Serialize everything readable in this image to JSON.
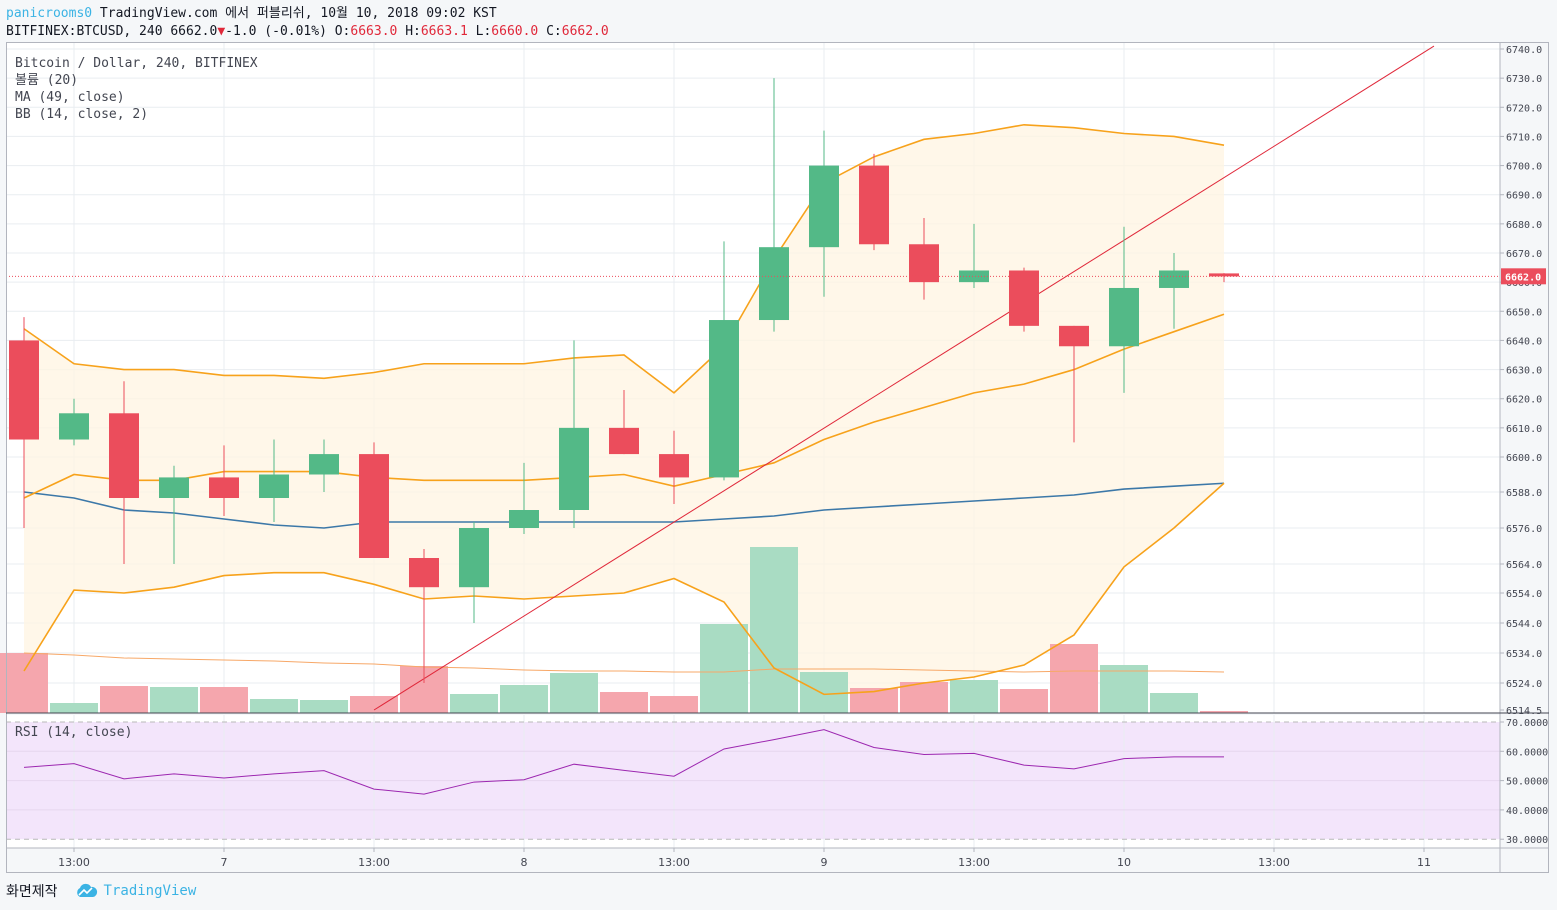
{
  "header": {
    "user": "panicrooms0",
    "published": " TradingView.com 에서 퍼블리쉬, 10월 10, 2018 09:02 KST",
    "symbol": "BITFINEX:BTCUSD, 240 6662.0",
    "change_arrow": "▼",
    "change": "-1.0 (-0.01%)",
    "o_label": "O:",
    "o": "6663.0",
    "h_label": "H:",
    "h": "6663.1",
    "l_label": "L:",
    "l": "6660.0",
    "c_label": "C:",
    "c": "6662.0"
  },
  "legend": {
    "main": "Bitcoin / Dollar, 240, BITFINEX",
    "volume": "볼륨 (20)",
    "ma": "MA (49, close)",
    "bb": "BB (14, close, 2)",
    "rsi": "RSI (14, close)"
  },
  "footer": {
    "left": "화면제작",
    "brand": "TradingView"
  },
  "colors": {
    "up": "#53b987",
    "down": "#eb4d5c",
    "bb": "#f7a21b",
    "ma": "#3c78a8",
    "rsi": "#9c27b0",
    "trend": "#e0283a"
  },
  "chart_data": [
    {
      "type": "candlestick",
      "price_axis": [
        "6740.0",
        "6730.0",
        "6720.0",
        "6710.0",
        "6700.0",
        "6690.0",
        "6680.0",
        "6670.0",
        "6660.0",
        "6650.0",
        "6640.0",
        "6630.0",
        "6620.0",
        "6610.0",
        "6600.0",
        "6588.0",
        "6576.0",
        "6564.0",
        "6554.0",
        "6544.0",
        "6534.0",
        "6524.0",
        "6514.5"
      ],
      "time_axis": [
        "13:00",
        "7",
        "13:00",
        "8",
        "13:00",
        "9",
        "13:00",
        "10",
        "13:00",
        "11"
      ],
      "last_price": "6662.0",
      "candles": [
        {
          "o": 6640,
          "h": 6648,
          "l": 6576,
          "c": 6606
        },
        {
          "o": 6606,
          "h": 6620,
          "l": 6604,
          "c": 6615
        },
        {
          "o": 6615,
          "h": 6626,
          "l": 6564,
          "c": 6586
        },
        {
          "o": 6586,
          "h": 6597,
          "l": 6564,
          "c": 6593
        },
        {
          "o": 6593,
          "h": 6604,
          "l": 6580,
          "c": 6586
        },
        {
          "o": 6586,
          "h": 6606,
          "l": 6578,
          "c": 6594
        },
        {
          "o": 6594,
          "h": 6606,
          "l": 6588,
          "c": 6601
        },
        {
          "o": 6601,
          "h": 6605,
          "l": 6566,
          "c": 6566
        },
        {
          "o": 6566,
          "h": 6569,
          "l": 6524,
          "c": 6556
        },
        {
          "o": 6556,
          "h": 6578,
          "l": 6544,
          "c": 6576
        },
        {
          "o": 6576,
          "h": 6598,
          "l": 6574,
          "c": 6582
        },
        {
          "o": 6582,
          "h": 6640,
          "l": 6576,
          "c": 6610
        },
        {
          "o": 6610,
          "h": 6623,
          "l": 6601,
          "c": 6601
        },
        {
          "o": 6601,
          "h": 6609,
          "l": 6584,
          "c": 6593
        },
        {
          "o": 6593,
          "h": 6674,
          "l": 6592,
          "c": 6647
        },
        {
          "o": 6647,
          "h": 6730,
          "l": 6643,
          "c": 6672
        },
        {
          "o": 6672,
          "h": 6712,
          "l": 6655,
          "c": 6700
        },
        {
          "o": 6700,
          "h": 6704,
          "l": 6671,
          "c": 6673
        },
        {
          "o": 6673,
          "h": 6682,
          "l": 6654,
          "c": 6660
        },
        {
          "o": 6660,
          "h": 6680,
          "l": 6658,
          "c": 6664
        },
        {
          "o": 6664,
          "h": 6665,
          "l": 6643,
          "c": 6645
        },
        {
          "o": 6645,
          "h": 6645,
          "l": 6605,
          "c": 6638
        },
        {
          "o": 6638,
          "h": 6679,
          "l": 6622,
          "c": 6658
        },
        {
          "o": 6658,
          "h": 6670,
          "l": 6644,
          "c": 6664
        },
        {
          "o": 6663.0,
          "h": 6663.1,
          "l": 6660.0,
          "c": 6662.0
        }
      ],
      "bb_upper": [
        6644,
        6632,
        6630,
        6630,
        6628,
        6628,
        6627,
        6629,
        6632,
        6632,
        6632,
        6634,
        6635,
        6622,
        6638,
        6668,
        6694,
        6703,
        6709,
        6711,
        6714,
        6713,
        6711,
        6710,
        6707
      ],
      "bb_basis": [
        6586,
        6594,
        6592,
        6592,
        6595,
        6595,
        6595,
        6593,
        6592,
        6592,
        6592,
        6593,
        6594,
        6590,
        6594,
        6598,
        6606,
        6612,
        6617,
        6622,
        6625,
        6630,
        6637,
        6643,
        6649
      ],
      "bb_lower": [
        6528,
        6555,
        6554,
        6556,
        6560,
        6561,
        6561,
        6557,
        6552,
        6553,
        6552,
        6553,
        6554,
        6559,
        6551,
        6529,
        6520,
        6521,
        6524,
        6526,
        6530,
        6540,
        6563,
        6576,
        6591
      ],
      "ma": [
        6588,
        6586,
        6582,
        6581,
        6579,
        6577,
        6576,
        6578,
        6578,
        6578,
        6578,
        6578,
        6578,
        6578,
        6579,
        6580,
        6582,
        6583,
        6584,
        6585,
        6586,
        6587,
        6589,
        6590,
        6591
      ],
      "volume": [
        {
          "v": 60,
          "up": false
        },
        {
          "v": 10,
          "up": true
        },
        {
          "v": 27,
          "up": false
        },
        {
          "v": 26,
          "up": true
        },
        {
          "v": 26,
          "up": false
        },
        {
          "v": 14,
          "up": true
        },
        {
          "v": 13,
          "up": true
        },
        {
          "v": 17,
          "up": false
        },
        {
          "v": 47,
          "up": false
        },
        {
          "v": 19,
          "up": true
        },
        {
          "v": 28,
          "up": true
        },
        {
          "v": 40,
          "up": true
        },
        {
          "v": 21,
          "up": false
        },
        {
          "v": 17,
          "up": false
        },
        {
          "v": 89,
          "up": true
        },
        {
          "v": 166,
          "up": true
        },
        {
          "v": 41,
          "up": true
        },
        {
          "v": 25,
          "up": false
        },
        {
          "v": 31,
          "up": false
        },
        {
          "v": 33,
          "up": true
        },
        {
          "v": 24,
          "up": false
        },
        {
          "v": 69,
          "up": false
        },
        {
          "v": 48,
          "up": true
        },
        {
          "v": 20,
          "up": true
        },
        {
          "v": 2,
          "up": false
        }
      ],
      "volume_ma": [
        60,
        58,
        55,
        54,
        53,
        52,
        50,
        49,
        46,
        45,
        43,
        42,
        42,
        41,
        41,
        44,
        44,
        44,
        43,
        42,
        41,
        42,
        42,
        42,
        41
      ],
      "trendline": {
        "from": {
          "index": 7,
          "price": 6514.5
        },
        "to": {
          "index": 28.2,
          "price": 6741
        }
      }
    },
    {
      "type": "line",
      "name": "RSI (14, close)",
      "axis": [
        "70.0000",
        "60.0000",
        "50.0000",
        "40.0000",
        "30.0000"
      ],
      "values": [
        54.5,
        55.8,
        50.6,
        52.3,
        50.9,
        52.3,
        53.4,
        47.1,
        45.4,
        49.5,
        50.3,
        55.6,
        53.5,
        51.5,
        60.8,
        64.0,
        67.4,
        61.3,
        58.9,
        59.3,
        55.3,
        54.0,
        57.5,
        58.1,
        58.1
      ]
    }
  ]
}
